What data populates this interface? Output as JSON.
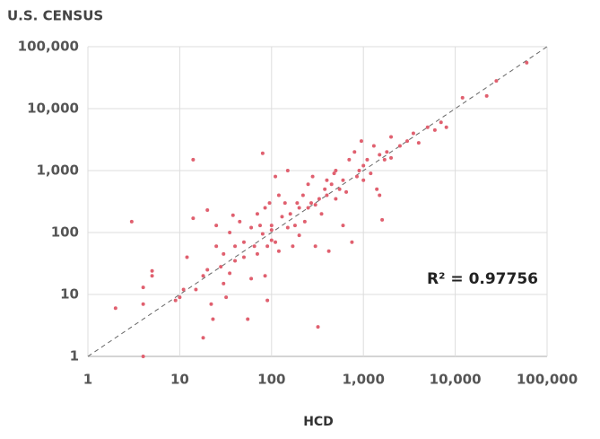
{
  "chart_data": {
    "type": "scatter",
    "title": "U.S. CENSUS",
    "x_label": "HCD",
    "annotation": "R² = 0.97756",
    "log_x": true,
    "log_y": true,
    "grid": true,
    "color": "#e0606f",
    "xlim": [
      1,
      100000
    ],
    "ylim": [
      1,
      100000
    ],
    "xticks": [
      1,
      10,
      100,
      {
        "value": 1000,
        "label": "1,000"
      },
      {
        "value": 10000,
        "label": "10,000"
      },
      {
        "value": 100000,
        "label": "100,000"
      }
    ],
    "yticks": [
      1,
      10,
      100,
      {
        "value": 1000,
        "label": "1,000"
      },
      {
        "value": 10000,
        "label": "10,000"
      },
      {
        "value": 100000,
        "label": "100,000"
      }
    ],
    "x": [
      2,
      3,
      4,
      4,
      4,
      5,
      5,
      9,
      10,
      11,
      12,
      14,
      14,
      15,
      18,
      18,
      20,
      20,
      22,
      23,
      25,
      25,
      28,
      30,
      30,
      32,
      35,
      35,
      38,
      40,
      40,
      45,
      50,
      50,
      55,
      60,
      60,
      65,
      70,
      70,
      75,
      80,
      80,
      85,
      85,
      90,
      90,
      95,
      100,
      100,
      100,
      110,
      110,
      120,
      120,
      130,
      140,
      150,
      150,
      160,
      170,
      180,
      190,
      200,
      200,
      220,
      230,
      250,
      250,
      270,
      280,
      300,
      300,
      320,
      330,
      350,
      380,
      400,
      400,
      420,
      450,
      480,
      500,
      500,
      550,
      600,
      600,
      650,
      700,
      750,
      800,
      850,
      900,
      950,
      1000,
      1000,
      1100,
      1200,
      1300,
      1400,
      1500,
      1500,
      1600,
      1700,
      1800,
      2000,
      2000,
      2500,
      3000,
      3500,
      4000,
      5000,
      6000,
      7000,
      8000,
      12000,
      22000,
      28000,
      60000
    ],
    "y": [
      6,
      150,
      1,
      7,
      13,
      20,
      24,
      8,
      9,
      12,
      40,
      1500,
      170,
      12,
      2,
      20,
      230,
      25,
      7,
      4,
      60,
      130,
      28,
      45,
      15,
      9,
      22,
      100,
      190,
      35,
      60,
      150,
      40,
      70,
      4,
      120,
      18,
      60,
      45,
      200,
      130,
      95,
      1900,
      250,
      20,
      60,
      8,
      300,
      75,
      110,
      130,
      800,
      70,
      50,
      400,
      180,
      300,
      120,
      1000,
      200,
      60,
      130,
      300,
      250,
      90,
      400,
      150,
      600,
      250,
      300,
      800,
      280,
      60,
      3,
      350,
      200,
      500,
      400,
      700,
      50,
      600,
      900,
      350,
      1000,
      500,
      700,
      130,
      450,
      1500,
      70,
      2000,
      800,
      1000,
      3000,
      700,
      1200,
      1500,
      900,
      2500,
      500,
      1800,
      400,
      160,
      1500,
      2000,
      1600,
      3500,
      2500,
      3000,
      4000,
      2800,
      5000,
      4500,
      6000,
      5000,
      15000,
      16000,
      28000,
      55000
    ]
  }
}
